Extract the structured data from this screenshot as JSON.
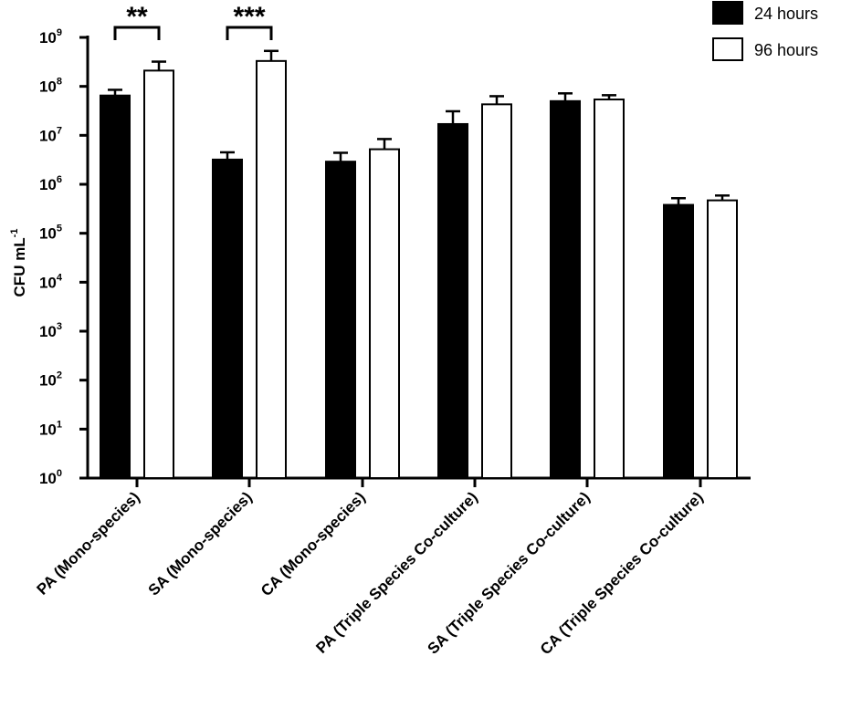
{
  "chart_data": {
    "type": "bar",
    "title": "",
    "xlabel": "",
    "ylabel": "CFU mL",
    "ylabel_superscript": "-1",
    "yscale": "log",
    "ylim": [
      1,
      1000000000
    ],
    "y_ticks": [
      {
        "base": "10",
        "exp": "0"
      },
      {
        "base": "10",
        "exp": "1"
      },
      {
        "base": "10",
        "exp": "2"
      },
      {
        "base": "10",
        "exp": "3"
      },
      {
        "base": "10",
        "exp": "4"
      },
      {
        "base": "10",
        "exp": "5"
      },
      {
        "base": "10",
        "exp": "6"
      },
      {
        "base": "10",
        "exp": "7"
      },
      {
        "base": "10",
        "exp": "8"
      },
      {
        "base": "10",
        "exp": "9"
      }
    ],
    "categories": [
      "PA (Mono-species)",
      "SA (Mono-species)",
      "CA (Mono-species)",
      "PA (Triple Species Co-culture)",
      "SA (Triple Species Co-culture)",
      "CA (Triple Species Co-culture)"
    ],
    "series": [
      {
        "name": "24 hours",
        "color": "#000000",
        "values": [
          65000000,
          3200000,
          2900000,
          17000000,
          50000000,
          380000
        ],
        "errors": [
          85000000,
          4500000,
          4400000,
          31000000,
          72000000,
          520000
        ]
      },
      {
        "name": "96 hours",
        "color": "#ffffff",
        "values": [
          210000000,
          330000000,
          5200000,
          43000000,
          54000000,
          470000
        ],
        "errors": [
          320000000,
          530000000,
          8400000,
          63000000,
          66000000,
          590000
        ]
      }
    ],
    "significance": [
      {
        "category_index": 0,
        "label": "**"
      },
      {
        "category_index": 1,
        "label": "***"
      }
    ],
    "legend_position": "top-right",
    "grid": false
  }
}
